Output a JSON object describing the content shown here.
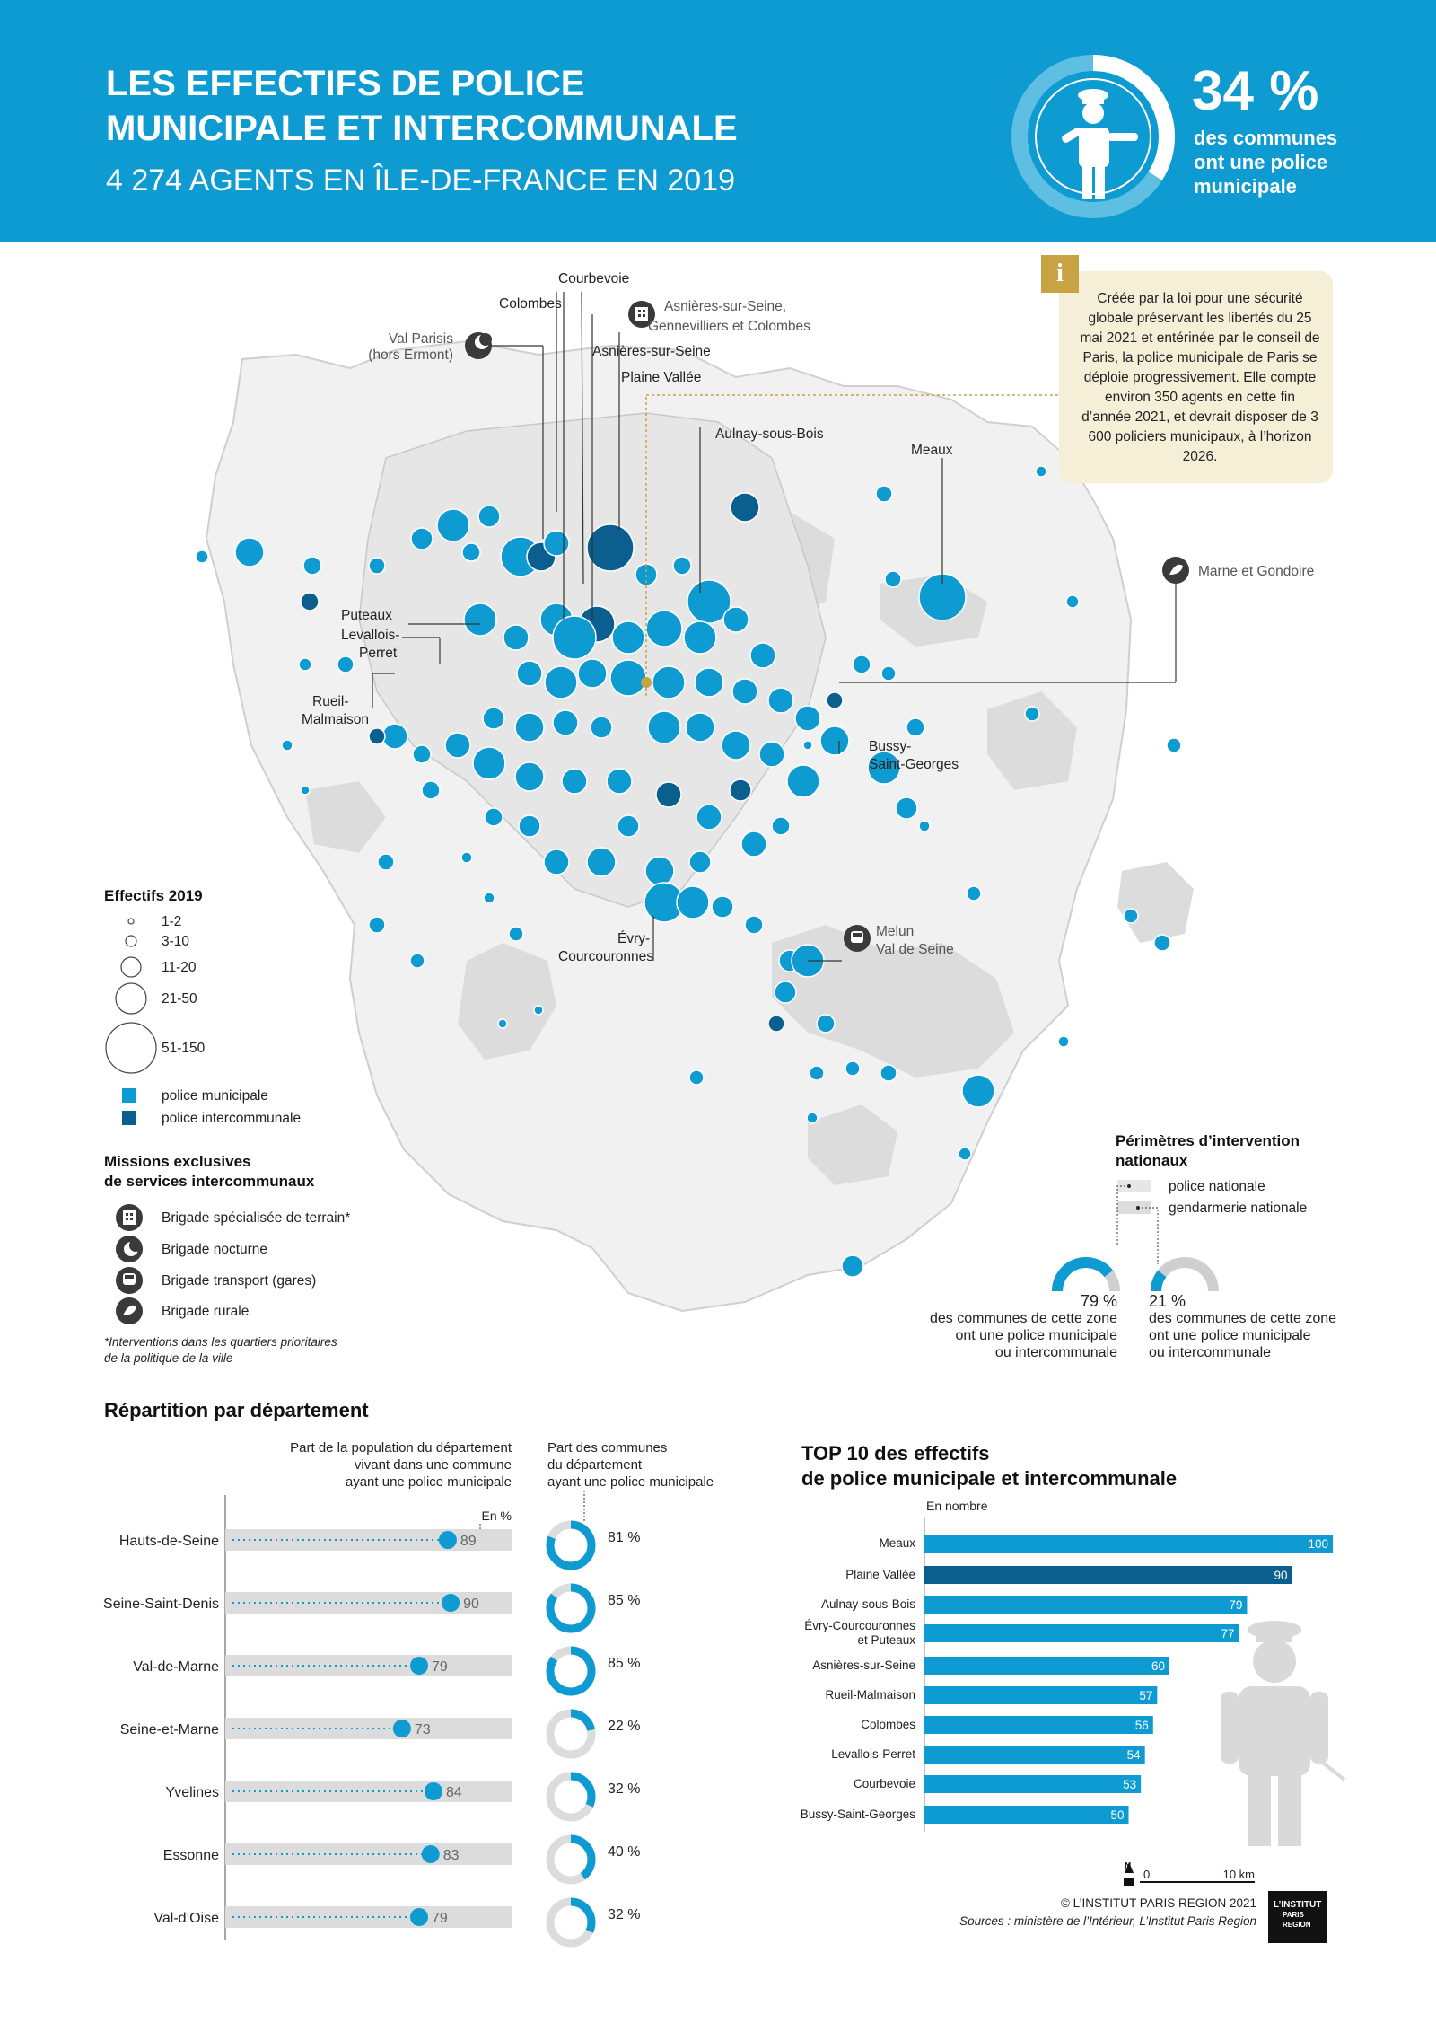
{
  "header": {
    "title_line1": "LES EFFECTIFS DE POLICE",
    "title_line2": "MUNICIPALE ET INTERCOMMUNALE",
    "subtitle": "4 274 AGENTS EN ÎLE-DE-FRANCE EN 2019",
    "stat_value": "34 %",
    "stat_fraction": 0.34,
    "stat_text_l1": "des communes",
    "stat_text_l2": "ont une police",
    "stat_text_l3": "municipale"
  },
  "info": {
    "icon": "i",
    "text": "Créée par la loi pour une sécurité globale préservant les libertés du 25 mai 2021 et entérinée par le conseil de Paris, la police municipale de Paris se déploie progressivement. Elle compte environ 350 agents en cette fin d’année 2021, et devrait disposer de 3 600 policiers municipaux, à l’horizon 2026."
  },
  "map_labels": {
    "courbevoie": "Courbevoie",
    "colombes": "Colombes",
    "asnieres_genn_l1": "Asnières-sur-Seine,",
    "asnieres_genn_l2": "Gennevilliers et Colombes",
    "val_parisis_l1": "Val Parisis",
    "val_parisis_l2": "(hors Ermont)",
    "asnieres": "Asnières-sur-Seine",
    "plaine_vallee": "Plaine Vallée",
    "aulnay": "Aulnay-sous-Bois",
    "meaux": "Meaux",
    "marne_gondoire": "Marne et Gondoire",
    "puteaux": "Puteaux",
    "levallois_l1": "Levallois-",
    "levallois_l2": "Perret",
    "rueil_l1": "Rueil-",
    "rueil_l2": "Malmaison",
    "bussy_l1": "Bussy-",
    "bussy_l2": "Saint-Georges",
    "melun_l1": "Melun",
    "melun_l2": "Val de Seine",
    "evry_l1": "Évry-",
    "evry_l2": "Courcouronnes"
  },
  "legend": {
    "effectifs_title": "Effectifs 2019",
    "sizes": [
      "1-2",
      "3-10",
      "11-20",
      "21-50",
      "51-150"
    ],
    "pm_label": "police municipale",
    "pi_label": "police intercommunale",
    "pm_color": "#0e9bd2",
    "pi_color": "#0b5f8f",
    "missions_title_l1": "Missions exclusives",
    "missions_title_l2": "de services intercommunaux",
    "missions": [
      {
        "icon": "building-icon",
        "label": "Brigade spécialisée de terrain*"
      },
      {
        "icon": "moon-icon",
        "label": "Brigade nocturne"
      },
      {
        "icon": "train-icon",
        "label": "Brigade transport (gares)"
      },
      {
        "icon": "leaf-icon",
        "label": "Brigade rurale"
      }
    ],
    "footnote_l1": "*Interventions dans les quartiers prioritaires",
    "footnote_l2": "de la politique de la ville"
  },
  "perimetres": {
    "title_l1": "Périmètres d’intervention",
    "title_l2": "nationaux",
    "police_nationale": "police nationale",
    "gendarmerie": "gendarmerie nationale",
    "pn_pct": "79 %",
    "pn_fraction": 0.79,
    "pn_text_l1": "des communes de cette zone",
    "pn_text_l2": "ont une police municipale",
    "pn_text_l3": "ou intercommunale",
    "gn_pct": "21 %",
    "gn_fraction": 0.21,
    "gn_text_l1": "des communes de cette zone",
    "gn_text_l2": "ont une police municipale",
    "gn_text_l3": "ou intercommunale"
  },
  "chart_data": [
    {
      "type": "bar",
      "title": "Répartition par département",
      "col1_header_l1": "Part de la population du département",
      "col1_header_l2": "vivant dans une commune",
      "col1_header_l3": "ayant une police municipale",
      "unit": "En %",
      "col2_header_l1": "Part des communes",
      "col2_header_l2": "du département",
      "col2_header_l3": "ayant une police municipale",
      "categories": [
        "Hauts-de-Seine",
        "Seine-Saint-Denis",
        "Val-de-Marne",
        "Seine-et-Marne",
        "Yvelines",
        "Essonne",
        "Val-d’Oise"
      ],
      "population_pct": [
        89,
        90,
        79,
        73,
        84,
        83,
        79
      ],
      "communes_pct": [
        81,
        85,
        85,
        22,
        32,
        40,
        32
      ],
      "communes_labels": [
        "81 %",
        "85 %",
        "85 %",
        "22 %",
        "32 %",
        "40 %",
        "32 %"
      ]
    },
    {
      "type": "bar",
      "title_l1": "TOP 10 des effectifs",
      "title_l2": "de police municipale et intercommunale",
      "unit": "En nombre",
      "categories": [
        "Meaux",
        "Plaine Vallée",
        "Aulnay-sous-Bois",
        "Évry-Courcouronnes et Puteaux",
        "Asnières-sur-Seine",
        "Rueil-Malmaison",
        "Colombes",
        "Levallois-Perret",
        "Courbevoie",
        "Bussy-Saint-Georges"
      ],
      "category_lines": [
        [
          "Meaux"
        ],
        [
          "Plaine Vallée"
        ],
        [
          "Aulnay-sous-Bois"
        ],
        [
          "Évry-Courcouronnes",
          "et Puteaux"
        ],
        [
          "Asnières-sur-Seine"
        ],
        [
          "Rueil-Malmaison"
        ],
        [
          "Colombes"
        ],
        [
          "Levallois-Perret"
        ],
        [
          "Courbevoie"
        ],
        [
          "Bussy-Saint-Georges"
        ]
      ],
      "values": [
        100,
        90,
        79,
        77,
        60,
        57,
        56,
        54,
        53,
        50
      ],
      "kind": [
        "municipale",
        "intercommunale",
        "municipale",
        "municipale",
        "municipale",
        "municipale",
        "municipale",
        "municipale",
        "municipale",
        "municipale"
      ],
      "xlim": [
        0,
        100
      ]
    }
  ],
  "scale": {
    "zero": "0",
    "ten": "10 km",
    "north": "N"
  },
  "footer": {
    "copyright": "© L’INSTITUT PARIS REGION 2021",
    "sources": "Sources : ministère de l’Intérieur, L’Institut Paris Region",
    "logo_l1": "L’INSTITUT",
    "logo_l2": "PARIS",
    "logo_l3": "REGION"
  }
}
